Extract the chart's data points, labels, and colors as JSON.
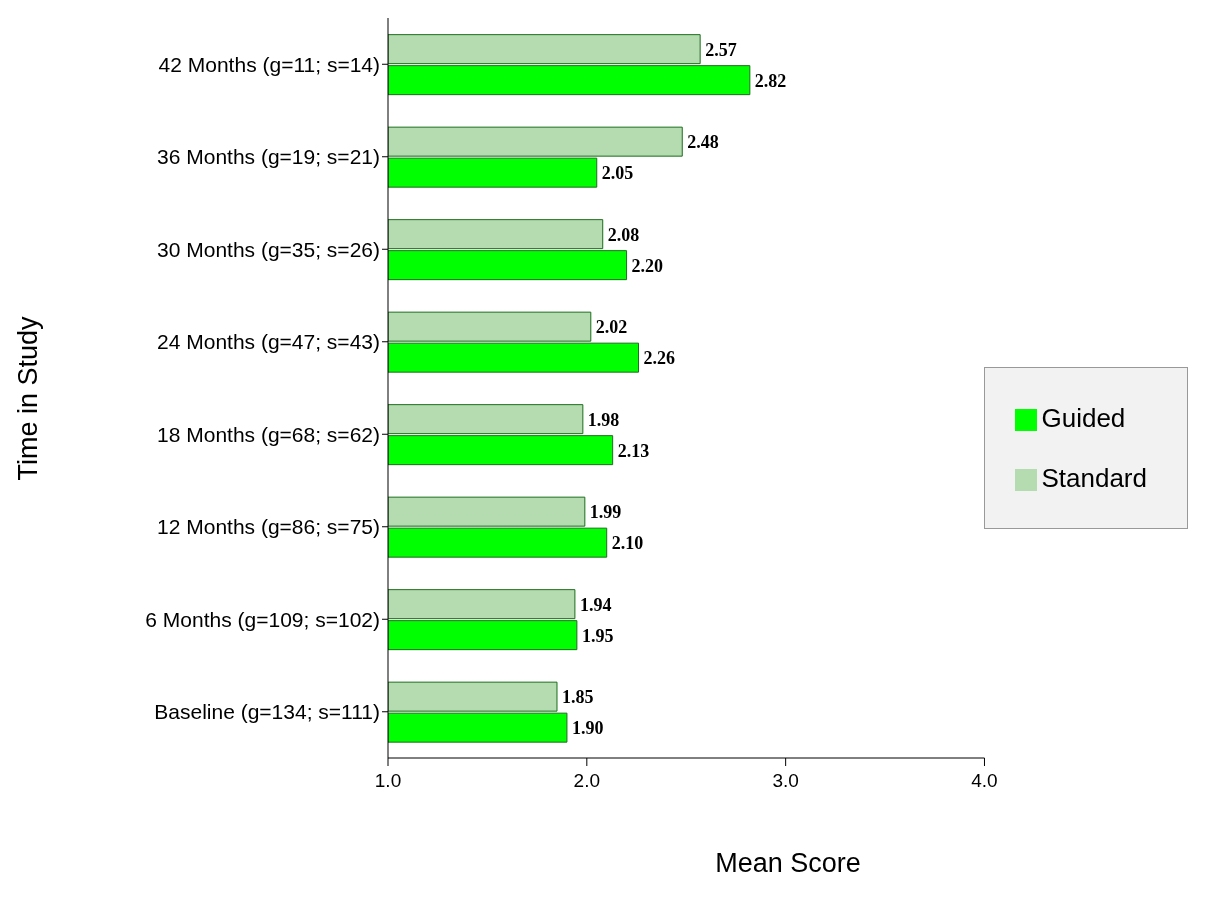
{
  "chart_data": {
    "type": "bar",
    "orientation": "horizontal",
    "xlabel": "Mean Score",
    "ylabel": "Time in Study",
    "categories": [
      "42 Months (g=11; s=14)",
      "36 Months (g=19; s=21)",
      "30 Months (g=35; s=26)",
      "24 Months (g=47; s=43)",
      "18 Months (g=68; s=62)",
      "12 Months (g=86; s=75)",
      "6 Months (g=109; s=102)",
      "Baseline (g=134; s=111)"
    ],
    "series": [
      {
        "name": "Standard",
        "color": "#b5dcb0",
        "values": [
          2.57,
          2.48,
          2.08,
          2.02,
          1.98,
          1.99,
          1.94,
          1.85
        ],
        "value_labels": [
          "2.57",
          "2.48",
          "2.08",
          "2.02",
          "1.98",
          "1.99",
          "1.94",
          "1.85"
        ]
      },
      {
        "name": "Guided",
        "color": "#00ff00",
        "values": [
          2.82,
          2.05,
          2.2,
          2.26,
          2.13,
          2.1,
          1.95,
          1.9
        ],
        "value_labels": [
          "2.82",
          "2.05",
          "2.20",
          "2.26",
          "2.13",
          "2.10",
          "1.95",
          "1.90"
        ]
      }
    ],
    "xlim": [
      1,
      4
    ],
    "xticks": [
      {
        "value": 1,
        "label": "1.0"
      },
      {
        "value": 2,
        "label": "2.0"
      },
      {
        "value": 3,
        "label": "3.0"
      },
      {
        "value": 4,
        "label": "4.0"
      }
    ],
    "grid": false,
    "legend": "right"
  }
}
